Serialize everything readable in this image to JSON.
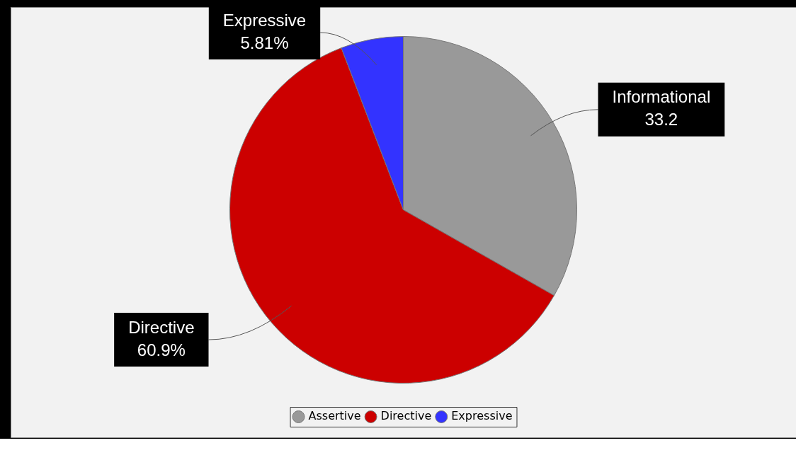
{
  "chart_data": {
    "type": "pie",
    "categories": [
      "Assertive",
      "Directive",
      "Expressive"
    ],
    "values": [
      33.2,
      60.9,
      5.81
    ],
    "colors": [
      "#999999",
      "#cc0000",
      "#3333ff"
    ],
    "value_labels": [
      "Informational\n33.2",
      "Directive\n60.9%",
      "Expressive\n5.81%"
    ],
    "legend": "bottom"
  }
}
